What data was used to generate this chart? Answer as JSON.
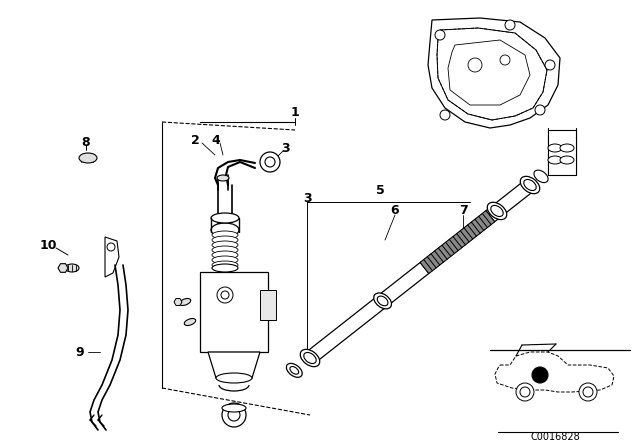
{
  "bg_color": "#ffffff",
  "line_color": "#000000",
  "figsize": [
    6.4,
    4.48
  ],
  "dpi": 100,
  "code_text": "C0016828"
}
